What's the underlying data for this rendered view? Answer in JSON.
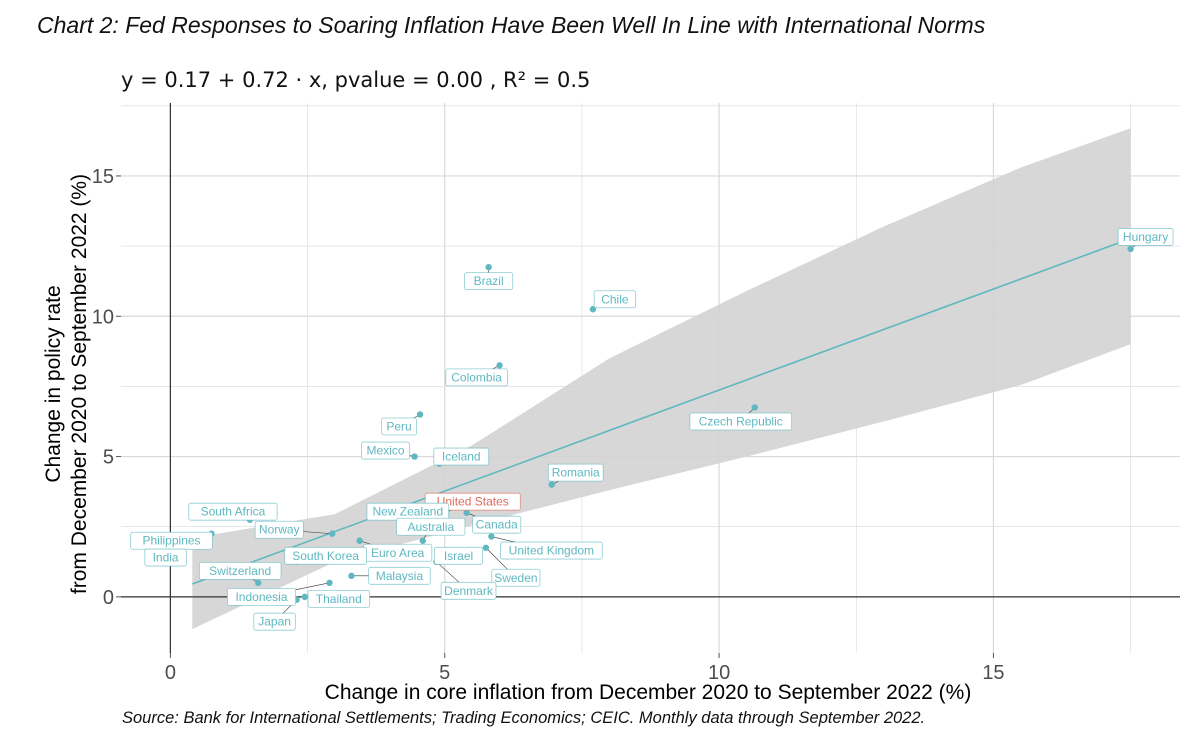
{
  "header": {
    "title": "Chart 2: Fed Responses to Soaring Inflation Have Been Well In Line with International Norms"
  },
  "equation": {
    "text": "y = 0.17 + 0.72 · x,   pvalue = 0.00 ,   R² = 0.5"
  },
  "footer": {
    "source": "Source: Bank for International Settlements; Trading Economics; CEIC. Monthly data through September 2022."
  },
  "colors": {
    "point": "#5fb8c0",
    "highlight": "#e0695c",
    "fit_line": "#5fb8c0",
    "confidence_band": "#d3d3d3",
    "grid": "#d9d9d9"
  },
  "chart_data": {
    "type": "scatter",
    "xlabel": "Change in core inflation from December 2020 to September 2022 (%)",
    "ylabel_line1": "Change in policy rate",
    "ylabel_line2": "from December 2020 to September 2022 (%)",
    "xlim": [
      -0.9,
      18.4
    ],
    "ylim": [
      -2.0,
      17.6
    ],
    "x_ticks": [
      0,
      5,
      10,
      15
    ],
    "y_ticks": [
      0,
      5,
      10,
      15
    ],
    "grid": true,
    "regression": {
      "intercept": 0.17,
      "slope": 0.72,
      "pvalue": "0.00",
      "r2": 0.5
    },
    "confidence_band": {
      "x": [
        0.4,
        3.0,
        5.5,
        8.0,
        10.5,
        13.0,
        15.5,
        17.5
      ],
      "lower": [
        -1.15,
        1.25,
        2.55,
        3.8,
        5.0,
        6.25,
        7.55,
        9.0
      ],
      "upper": [
        2.1,
        2.95,
        5.4,
        8.5,
        10.9,
        13.2,
        15.3,
        16.7
      ]
    },
    "points": [
      {
        "name": "Hungary",
        "x": 17.5,
        "y": 12.4
      },
      {
        "name": "Brazil",
        "x": 5.8,
        "y": 11.75
      },
      {
        "name": "Chile",
        "x": 7.7,
        "y": 10.25
      },
      {
        "name": "Colombia",
        "x": 6.0,
        "y": 8.25
      },
      {
        "name": "Czech Republic",
        "x": 10.65,
        "y": 6.75
      },
      {
        "name": "Peru",
        "x": 4.55,
        "y": 6.5
      },
      {
        "name": "Mexico",
        "x": 4.45,
        "y": 5.0
      },
      {
        "name": "Iceland",
        "x": 4.9,
        "y": 4.75
      },
      {
        "name": "Romania",
        "x": 6.95,
        "y": 4.0
      },
      {
        "name": "United States",
        "x": 5.0,
        "y": 3.0,
        "highlight": true
      },
      {
        "name": "New Zealand",
        "x": 4.4,
        "y": 2.75
      },
      {
        "name": "South Africa",
        "x": 1.45,
        "y": 2.75
      },
      {
        "name": "Canada",
        "x": 5.4,
        "y": 3.0
      },
      {
        "name": "Norway",
        "x": 2.95,
        "y": 2.25
      },
      {
        "name": "Philippines",
        "x": 0.75,
        "y": 2.25
      },
      {
        "name": "Australia",
        "x": 4.6,
        "y": 2.0
      },
      {
        "name": "United Kingdom",
        "x": 5.85,
        "y": 2.15
      },
      {
        "name": "Euro Area",
        "x": 3.45,
        "y": 2.0
      },
      {
        "name": "India",
        "x": 0.35,
        "y": 1.9
      },
      {
        "name": "South Korea",
        "x": 2.3,
        "y": 1.25
      },
      {
        "name": "Israel",
        "x": 4.85,
        "y": 1.25
      },
      {
        "name": "Sweden",
        "x": 5.75,
        "y": 1.75
      },
      {
        "name": "Switzerland",
        "x": 1.6,
        "y": 0.5
      },
      {
        "name": "Malaysia",
        "x": 3.3,
        "y": 0.75
      },
      {
        "name": "Indonesia",
        "x": 2.9,
        "y": 0.5
      },
      {
        "name": "Thailand",
        "x": 2.45,
        "y": 0.0
      },
      {
        "name": "Japan",
        "x": 2.3,
        "y": -0.1
      },
      {
        "name": "Denmark",
        "x": 4.85,
        "y": 1.25
      }
    ]
  }
}
